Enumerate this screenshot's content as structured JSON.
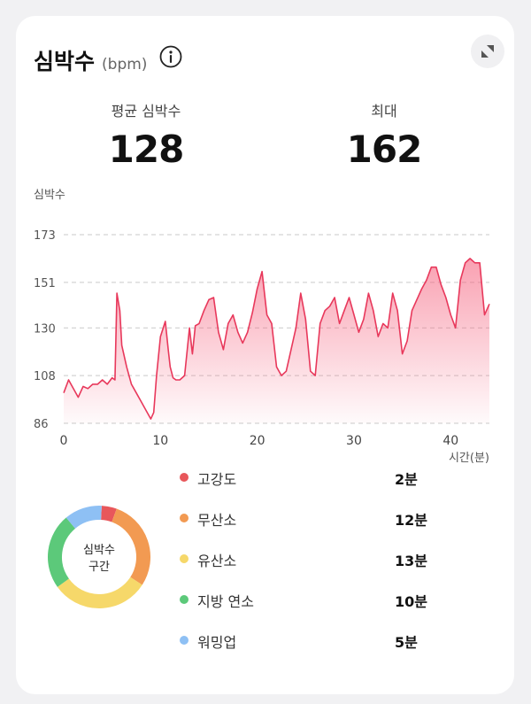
{
  "header": {
    "title": "심박수",
    "unit": "(bpm)"
  },
  "stats": {
    "avg_label": "평균 심박수",
    "avg_value": "128",
    "max_label": "최대",
    "max_value": "162"
  },
  "chart_data": {
    "type": "area",
    "ylabel": "심박수",
    "xlabel": "시간(분)",
    "yticks": [
      86,
      108,
      130,
      151,
      173
    ],
    "xticks": [
      0,
      10,
      20,
      30,
      40
    ],
    "xlim": [
      0,
      44
    ],
    "ylim": [
      86,
      173
    ],
    "grid": true,
    "line_color": "#e8385b",
    "x": [
      0,
      0.5,
      1,
      1.5,
      2,
      2.5,
      3,
      3.5,
      4,
      4.5,
      5,
      5.3,
      5.5,
      5.8,
      6,
      6.5,
      7,
      7.5,
      8,
      8.5,
      9,
      9.3,
      9.6,
      10,
      10.5,
      10.8,
      11,
      11.3,
      11.6,
      12,
      12.5,
      13,
      13.3,
      13.6,
      14,
      14.5,
      15,
      15.5,
      16,
      16.5,
      17,
      17.5,
      18,
      18.5,
      19,
      19.5,
      20,
      20.5,
      21,
      21.5,
      22,
      22.5,
      23,
      23.5,
      24,
      24.5,
      25,
      25.5,
      26,
      26.5,
      27,
      27.5,
      28,
      28.5,
      29,
      29.5,
      30,
      30.5,
      31,
      31.5,
      32,
      32.5,
      33,
      33.5,
      34,
      34.5,
      35,
      35.5,
      36,
      36.5,
      37,
      37.5,
      38,
      38.5,
      39,
      39.5,
      40,
      40.5,
      41,
      41.5,
      42,
      42.5,
      43,
      43.5,
      44
    ],
    "y": [
      100,
      106,
      102,
      98,
      103,
      102,
      104,
      104,
      106,
      104,
      107,
      106,
      146,
      138,
      122,
      112,
      104,
      100,
      96,
      92,
      88,
      91,
      108,
      126,
      133,
      120,
      112,
      107,
      106,
      106,
      108,
      130,
      118,
      131,
      132,
      138,
      143,
      144,
      128,
      120,
      132,
      136,
      128,
      123,
      128,
      137,
      148,
      156,
      136,
      132,
      112,
      108,
      110,
      120,
      130,
      146,
      134,
      110,
      108,
      132,
      138,
      140,
      144,
      132,
      138,
      144,
      136,
      128,
      134,
      146,
      138,
      126,
      132,
      130,
      146,
      138,
      118,
      124,
      138,
      143,
      148,
      152,
      158,
      158,
      150,
      144,
      136,
      130,
      152,
      160,
      162,
      160,
      160,
      136,
      141
    ]
  },
  "zones": {
    "center_label_line1": "심박수",
    "center_label_line2": "구간",
    "items": [
      {
        "label": "고강도",
        "value": "2분",
        "minutes": 2,
        "color": "#e8575b"
      },
      {
        "label": "무산소",
        "value": "12분",
        "minutes": 12,
        "color": "#f29a52"
      },
      {
        "label": "유산소",
        "value": "13분",
        "minutes": 13,
        "color": "#f6d86a"
      },
      {
        "label": "지방 연소",
        "value": "10분",
        "minutes": 10,
        "color": "#5cc97a"
      },
      {
        "label": "워밍업",
        "value": "5분",
        "minutes": 5,
        "color": "#8ec0f4"
      }
    ]
  }
}
